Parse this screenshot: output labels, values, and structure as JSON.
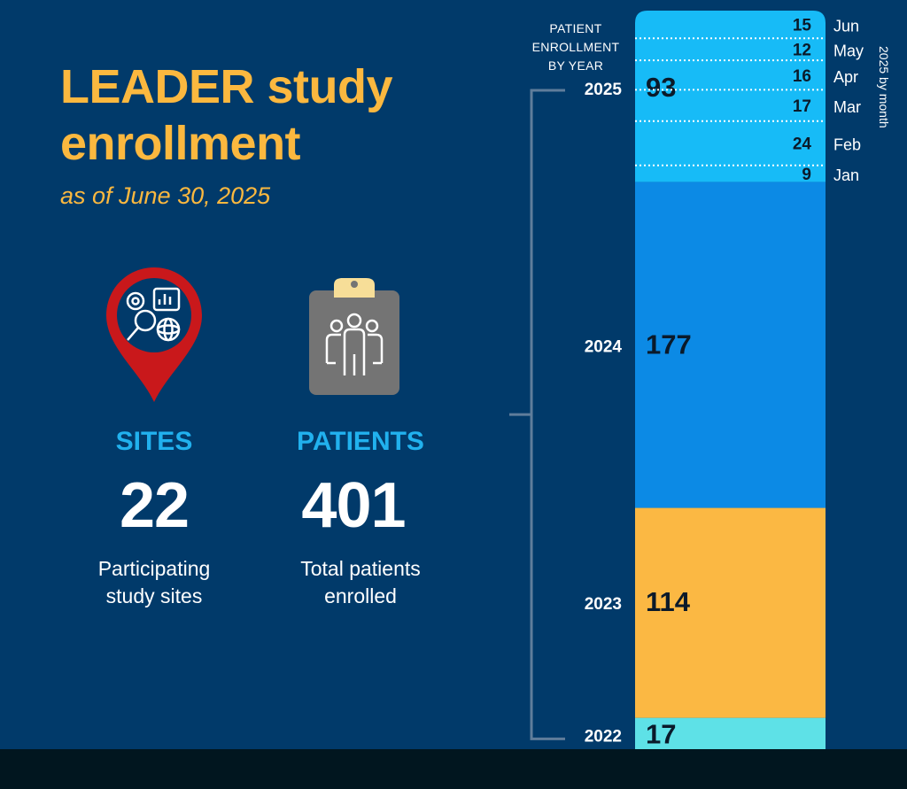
{
  "header": {
    "title": "LEADER study enrollment",
    "subtitle": "as of June 30, 2025"
  },
  "stats": {
    "sites": {
      "label": "SITES",
      "value": "22",
      "desc_line1": "Participating",
      "desc_line2": "study sites",
      "icon": "map-pin-research-icon"
    },
    "patients": {
      "label": "PATIENTS",
      "value": "401",
      "desc_line1": "Total patients",
      "desc_line2": "enrolled",
      "icon": "clipboard-people-icon"
    }
  },
  "chart_header": {
    "line1": "PATIENT",
    "line2": "ENROLLMENT",
    "line3": "BY YEAR"
  },
  "side_label": "2025 by month",
  "colors": {
    "background": "#013a6a",
    "title": "#fbb83f",
    "stat_label": "#21b1ee",
    "year_2025": "#17bbf7",
    "year_2024": "#0c8ae5",
    "year_2023": "#fbb843",
    "year_2022": "#5ee1e7",
    "pin": "#c9181b",
    "clipboard": "#747474",
    "clip": "#f7de98"
  },
  "chart_data": {
    "type": "bar",
    "stacked": true,
    "orientation": "vertical",
    "total": 401,
    "categories": [
      "2022",
      "2023",
      "2024",
      "2025"
    ],
    "values": [
      17,
      114,
      177,
      93
    ],
    "colors": [
      "#5ee1e7",
      "#fbb843",
      "#0c8ae5",
      "#17bbf7"
    ],
    "breakdown_2025": {
      "months": [
        "Jan",
        "Feb",
        "Mar",
        "Apr",
        "May",
        "Jun"
      ],
      "values": [
        9,
        24,
        17,
        16,
        12,
        15
      ]
    }
  }
}
